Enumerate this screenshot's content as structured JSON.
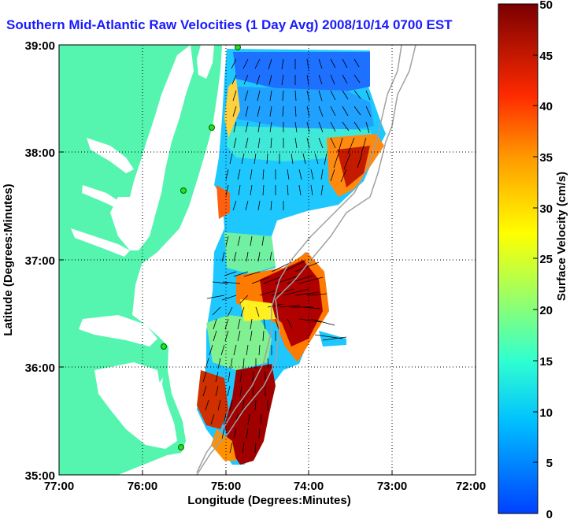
{
  "title": "Southern Mid-Atlantic Raw Velocities (1 Day Avg) 2008/10/14 0700 EST",
  "x_axis": {
    "label": "Longitude (Degrees:Minutes)",
    "ticks": [
      "77:00",
      "76:00",
      "75:00",
      "74:00",
      "73:00",
      "72:00"
    ]
  },
  "y_axis": {
    "label": "Latitude (Degrees:Minutes)",
    "ticks": [
      "39:00",
      "38:00",
      "37:00",
      "36:00",
      "35:00"
    ]
  },
  "colorbar": {
    "label": "Surface Velocity (cm/s)",
    "ticks": [
      "50",
      "45",
      "40",
      "35",
      "30",
      "25",
      "20",
      "15",
      "10",
      "5",
      "0"
    ],
    "range": [
      0,
      50
    ]
  },
  "map": {
    "extent": {
      "lon": [
        -77,
        -72
      ],
      "lat": [
        35,
        39
      ]
    },
    "land_color": "#55f5b0",
    "grid": "dotted",
    "radar_sites": 5
  }
}
